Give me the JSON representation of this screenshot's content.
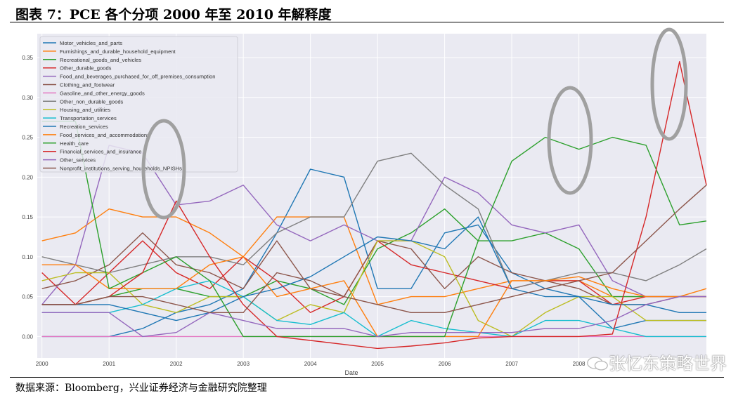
{
  "title": "图表 7：PCE 各个分项 2000 年至 2010 年解释度",
  "source": "数据来源：Bloomberg，兴业证券经济与金融研究院整理",
  "watermark": "张忆东策略世界",
  "chart_data": {
    "type": "line",
    "title": "",
    "xlabel": "Date",
    "ylabel": "",
    "xlim": [
      1999.93,
      2009.9
    ],
    "ylim": [
      -0.027,
      0.38
    ],
    "grid": true,
    "legend_placement": "upper-left",
    "x_ticks": [
      "2000",
      "2001",
      "2002",
      "2003",
      "2004",
      "2005",
      "2006",
      "2007",
      "2008"
    ],
    "y_ticks": [
      "0.00",
      "0.05",
      "0.10",
      "0.15",
      "0.20",
      "0.25",
      "0.30",
      "0.35"
    ],
    "x": [
      2000,
      2000.5,
      2001,
      2001.5,
      2002,
      2002.5,
      2003,
      2003.5,
      2004,
      2004.5,
      2005,
      2005.5,
      2006,
      2006.5,
      2007,
      2007.5,
      2008,
      2008.5,
      2009,
      2009.5,
      2009.9
    ],
    "series": [
      {
        "name": "Motor_vehicles_and_parts",
        "color": "#1f77b4",
        "values": [
          0,
          0,
          0,
          0.01,
          0.03,
          0.04,
          0.06,
          0.13,
          0.21,
          0.2,
          0.06,
          0.06,
          0.13,
          0.14,
          0.08,
          0.06,
          0.05,
          0.01,
          0.02,
          0.02,
          0.02
        ]
      },
      {
        "name": "Furnishings_and_durable_household_equipment",
        "color": "#ff7f0e",
        "values": [
          0.12,
          0.13,
          0.16,
          0.15,
          0.15,
          0.13,
          0.1,
          0.15,
          0.15,
          0.15,
          0.04,
          0.05,
          0.05,
          0.06,
          0.07,
          0.07,
          0.07,
          0.05,
          0.05,
          0.05,
          0.06
        ]
      },
      {
        "name": "Recreational_goods_and_vehicles",
        "color": "#2ca02c",
        "values": [
          0.04,
          0.04,
          0.05,
          0.06,
          0.06,
          0.05,
          0.05,
          0.07,
          0.06,
          0.04,
          0.11,
          0.13,
          0.16,
          0.12,
          0.12,
          0.13,
          0.11,
          0.05,
          0.05,
          0.05,
          0.05
        ]
      },
      {
        "name": "Other_durable_goods",
        "color": "#d62728",
        "values": [
          0.08,
          0.04,
          0.08,
          0.12,
          0.08,
          0.06,
          0.1,
          0.07,
          0.03,
          0.05,
          0.12,
          0.09,
          0.08,
          0.07,
          0.06,
          0.07,
          0.07,
          0.04,
          0.05,
          0.05,
          0.05
        ]
      },
      {
        "name": "Food_and_beverages_purchased_for_off_premises_consumption",
        "color": "#9467bd",
        "values": [
          0.04,
          0.09,
          0.24,
          0.23,
          0.165,
          0.17,
          0.19,
          0.14,
          0.12,
          0.14,
          0.12,
          0.12,
          0.2,
          0.18,
          0.14,
          0.13,
          0.14,
          0.07,
          0.05,
          0.05,
          0.05
        ]
      },
      {
        "name": "Clothing_and_footwear",
        "color": "#8c564b",
        "values": [
          0.06,
          0.07,
          0.09,
          0.13,
          0.09,
          0.08,
          0.06,
          0.12,
          0.06,
          0.05,
          0.12,
          0.11,
          0.06,
          0.1,
          0.08,
          0.07,
          0.06,
          0.04,
          0.04,
          0.05,
          0.05
        ]
      },
      {
        "name": "Gasoline_and_other_energy_goods",
        "color": "#e377c2",
        "values": [
          0,
          0,
          0,
          0,
          0,
          0,
          0,
          0,
          0,
          0,
          0,
          0,
          0,
          0,
          0,
          0,
          0,
          0,
          0,
          0,
          0
        ]
      },
      {
        "name": "Other_non_durable_goods",
        "color": "#7f7f7f",
        "values": [
          0.1,
          0.09,
          0.08,
          0.09,
          0.1,
          0.1,
          0.09,
          0.13,
          0.15,
          0.15,
          0.22,
          0.23,
          0.19,
          0.16,
          0.06,
          0.07,
          0.08,
          0.08,
          0.07,
          0.09,
          0.11
        ]
      },
      {
        "name": "Housing_and_utilities",
        "color": "#bcbd22",
        "values": [
          0.07,
          0.08,
          0.08,
          0.04,
          0.03,
          0.05,
          0.05,
          0.02,
          0.04,
          0.03,
          0.12,
          0.12,
          0.1,
          0.02,
          0.0,
          0.03,
          0.05,
          0.05,
          0.02,
          0.02,
          0.02
        ]
      },
      {
        "name": "Transportation_services",
        "color": "#17becf",
        "values": [
          0.03,
          0.03,
          0.03,
          0.04,
          0.06,
          0.07,
          0.05,
          0.02,
          0.015,
          0.03,
          0.0,
          0.02,
          0.01,
          0.005,
          0.0,
          0.02,
          0.02,
          0.01,
          0.0,
          0.0,
          0.0
        ]
      },
      {
        "name": "Recreation_services",
        "color": "#1f77b4",
        "values": [
          0.04,
          0.04,
          0.04,
          0.03,
          0.02,
          0.03,
          0.05,
          0.06,
          0.075,
          0.1,
          0.125,
          0.12,
          0.11,
          0.15,
          0.06,
          0.05,
          0.05,
          0.04,
          0.04,
          0.03,
          0.03
        ]
      },
      {
        "name": "Food_services_and_accommodations",
        "color": "#ff7f0e",
        "values": [
          0.09,
          0.09,
          0.06,
          0.06,
          0.06,
          0.09,
          0.1,
          0.05,
          0.06,
          0.07,
          0.0,
          0.0,
          0.0,
          0.0,
          0.07,
          0.07,
          0.075,
          0.06,
          0.05,
          0.05,
          0.05
        ]
      },
      {
        "name": "Health_care",
        "color": "#2ca02c",
        "values": [
          0.27,
          0.27,
          0.06,
          0.08,
          0.1,
          0.07,
          0.0,
          0.0,
          0.0,
          0.0,
          0.0,
          0.0,
          0.0,
          0.12,
          0.22,
          0.25,
          0.235,
          0.25,
          0.24,
          0.14,
          0.145
        ]
      },
      {
        "name": "Financial_services_and_insurance",
        "color": "#d62728",
        "values": [
          0.04,
          0.04,
          0.05,
          0.08,
          0.17,
          0.1,
          0.04,
          0.0,
          -0.005,
          -0.01,
          -0.015,
          -0.012,
          -0.008,
          -0.002,
          0.0,
          0.0,
          0.0,
          0.003,
          0.15,
          0.345,
          0.19
        ]
      },
      {
        "name": "Other_services",
        "color": "#9467bd",
        "values": [
          0.03,
          0.03,
          0.03,
          0.0,
          0.005,
          0.03,
          0.02,
          0.01,
          0.01,
          0.01,
          0.0,
          0.005,
          0.005,
          0.005,
          0.005,
          0.01,
          0.01,
          0.02,
          0.04,
          0.05,
          0.05
        ]
      },
      {
        "name": "Nonprofit_institutions_serving_households_NPISHs",
        "color": "#8c564b",
        "values": [
          0.04,
          0.04,
          0.05,
          0.05,
          0.04,
          0.03,
          0.03,
          0.08,
          0.07,
          0.05,
          0.04,
          0.03,
          0.03,
          0.04,
          0.05,
          0.06,
          0.07,
          0.08,
          0.12,
          0.16,
          0.19
        ]
      }
    ]
  }
}
